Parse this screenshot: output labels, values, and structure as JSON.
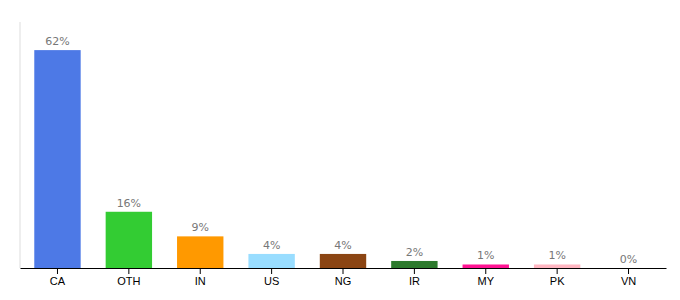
{
  "chart_data": {
    "type": "bar",
    "categories": [
      "CA",
      "OTH",
      "IN",
      "US",
      "NG",
      "IR",
      "MY",
      "PK",
      "VN"
    ],
    "values": [
      62,
      16,
      9,
      4,
      4,
      2,
      1,
      1,
      0
    ],
    "value_labels": [
      "62%",
      "16%",
      "9%",
      "4%",
      "4%",
      "2%",
      "1%",
      "1%",
      "0%"
    ],
    "colors": [
      "#4d79e6",
      "#33cc33",
      "#ff9900",
      "#99ddff",
      "#8B4513",
      "#2d7a2d",
      "#ff1493",
      "#ffb6c1",
      "#cccccc"
    ],
    "ylim": [
      0,
      70
    ],
    "grid": false,
    "data_labels": true,
    "tick_labels": "x"
  }
}
